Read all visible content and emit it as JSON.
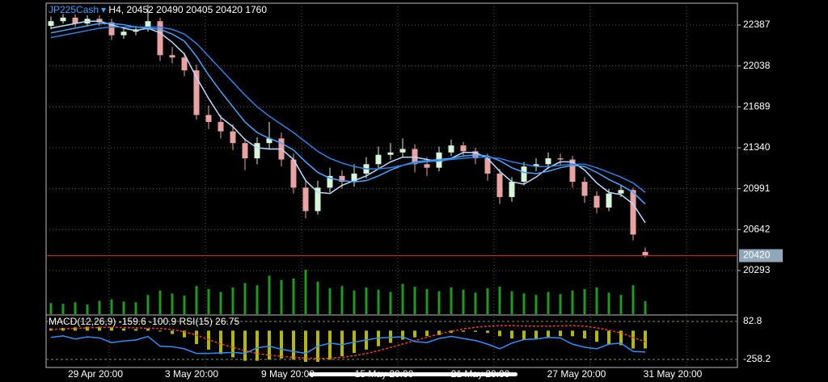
{
  "chart_data": {
    "type": "candlestick",
    "symbol": "JP225Cash",
    "timeframe": "H4,",
    "open": [
      22380,
      22420,
      22450,
      22400,
      22440,
      22410,
      22300,
      22330,
      22350,
      22420,
      22130,
      22110,
      22000,
      21620,
      21560,
      21480,
      21380,
      21250,
      21380,
      21420,
      21240,
      21000,
      20800,
      21000,
      21100,
      21050,
      21120,
      21200,
      21280,
      21300,
      21330,
      21200,
      21170,
      21300,
      21360,
      21310,
      21250,
      21120,
      20920,
      21050,
      21180,
      21200,
      21250,
      21240,
      21050,
      20930,
      20830,
      20950,
      20980,
      20452
    ],
    "high": [
      22460,
      22480,
      22480,
      22470,
      22470,
      22440,
      22370,
      22380,
      22560,
      22450,
      22200,
      22150,
      22050,
      21700,
      21620,
      21540,
      21420,
      21430,
      21560,
      21470,
      21290,
      21060,
      21060,
      21170,
      21150,
      21200,
      21260,
      21350,
      21380,
      21420,
      21370,
      21260,
      21350,
      21410,
      21390,
      21340,
      21290,
      21160,
      21090,
      21220,
      21250,
      21300,
      21290,
      21270,
      21090,
      20970,
      20990,
      21020,
      21000,
      20490
    ],
    "low": [
      22350,
      22400,
      22370,
      22380,
      22380,
      22260,
      22270,
      22300,
      22330,
      22080,
      22060,
      21950,
      21580,
      21500,
      21420,
      21320,
      21150,
      21200,
      21330,
      21180,
      20950,
      20740,
      20770,
      20960,
      20990,
      21010,
      21080,
      21160,
      21240,
      21260,
      21130,
      21100,
      21140,
      21270,
      21270,
      21200,
      21060,
      20860,
      20880,
      21020,
      21140,
      21160,
      21190,
      21000,
      20870,
      20780,
      20800,
      20920,
      20550,
      20405
    ],
    "close": [
      22420,
      22450,
      22400,
      22440,
      22410,
      22300,
      22330,
      22350,
      22420,
      22130,
      22110,
      22000,
      21620,
      21560,
      21480,
      21380,
      21250,
      21380,
      21420,
      21240,
      21000,
      20800,
      21000,
      21100,
      21050,
      21120,
      21200,
      21280,
      21300,
      21330,
      21200,
      21170,
      21300,
      21360,
      21310,
      21250,
      21120,
      20920,
      21050,
      21180,
      21200,
      21250,
      21240,
      21050,
      20930,
      20830,
      20950,
      20980,
      20600,
      20420
    ],
    "volume": [
      1500,
      1400,
      1600,
      1300,
      1800,
      2000,
      1700,
      1600,
      2600,
      3200,
      2800,
      2500,
      3800,
      3400,
      3000,
      3600,
      4200,
      3900,
      5200,
      4600,
      4800,
      6000,
      4400,
      3500,
      3800,
      3200,
      3600,
      3300,
      3000,
      4100,
      3700,
      3400,
      3100,
      3600,
      3300,
      2900,
      3500,
      3700,
      3100,
      2800,
      2600,
      3000,
      2700,
      3200,
      3400,
      3600,
      2900,
      2600,
      3900,
      1760
    ],
    "up_color": "#d8f5d8",
    "down_color": "#e9a3a3",
    "volume_color": "#1e9a1e",
    "moving_averages": [
      {
        "color": "#b8dcff",
        "values": [
          22360,
          22380,
          22400,
          22420,
          22420,
          22390,
          22360,
          22340,
          22360,
          22320,
          22240,
          22140,
          21940,
          21760,
          21600,
          21520,
          21410,
          21340,
          21330,
          21330,
          21240,
          21060,
          20960,
          20950,
          21020,
          21060,
          21100,
          21160,
          21220,
          21260,
          21260,
          21240,
          21220,
          21250,
          21300,
          21300,
          21250,
          21140,
          21050,
          21030,
          21090,
          21170,
          21220,
          21220,
          21150,
          21040,
          20960,
          20940,
          20860,
          20700
        ]
      },
      {
        "color": "#4aa3ff",
        "values": [
          22320,
          22340,
          22360,
          22380,
          22400,
          22400,
          22390,
          22370,
          22360,
          22350,
          22310,
          22250,
          22120,
          21960,
          21820,
          21690,
          21560,
          21470,
          21420,
          21380,
          21320,
          21220,
          21130,
          21080,
          21060,
          21050,
          21060,
          21100,
          21150,
          21190,
          21220,
          21230,
          21240,
          21250,
          21270,
          21280,
          21270,
          21230,
          21170,
          21130,
          21120,
          21140,
          21170,
          21190,
          21180,
          21130,
          21070,
          21020,
          20960,
          20860
        ]
      },
      {
        "color": "#2f7fe0",
        "values": [
          22280,
          22300,
          22320,
          22340,
          22360,
          22370,
          22370,
          22370,
          22370,
          22370,
          22350,
          22310,
          22230,
          22120,
          22010,
          21900,
          21790,
          21690,
          21610,
          21540,
          21470,
          21390,
          21310,
          21250,
          21210,
          21180,
          21160,
          21160,
          21170,
          21190,
          21210,
          21220,
          21230,
          21240,
          21250,
          21260,
          21260,
          21250,
          21220,
          21200,
          21180,
          21180,
          21190,
          21200,
          21200,
          21170,
          21130,
          21090,
          21040,
          20960
        ]
      }
    ],
    "ylim": [
      19914,
      22573
    ],
    "yticks": [
      22387,
      22038,
      21689,
      21340,
      20991,
      20642,
      20293
    ],
    "price_line_color": "#d02020",
    "grid": true,
    "x_labels": [
      "29 Apr 20:00",
      "3 May 20:00",
      "9 May 20:00",
      "15 May 20:00",
      "21 May 20:00",
      "27 May 20:00",
      "31 May 20:00"
    ],
    "macd": {
      "label": "MACD(12,26,9)",
      "color": "#b5b800",
      "signal_color": "#e04030",
      "values": [
        20,
        25,
        30,
        35,
        35,
        30,
        20,
        15,
        20,
        0,
        -30,
        -60,
        -120,
        -170,
        -210,
        -240,
        -270,
        -270,
        -260,
        -250,
        -260,
        -280,
        -280,
        -260,
        -230,
        -200,
        -170,
        -140,
        -110,
        -80,
        -60,
        -50,
        -40,
        -20,
        -10,
        -10,
        -20,
        -50,
        -70,
        -80,
        -70,
        -60,
        -50,
        -50,
        -70,
        -100,
        -120,
        -130,
        -160,
        -159.6
      ],
      "signal": [
        10,
        15,
        20,
        25,
        28,
        30,
        28,
        25,
        22,
        20,
        10,
        -10,
        -40,
        -80,
        -120,
        -150,
        -180,
        -205,
        -220,
        -230,
        -240,
        -245,
        -250,
        -248,
        -240,
        -225,
        -205,
        -180,
        -150,
        -120,
        -90,
        -60,
        -30,
        -5,
        15,
        30,
        40,
        45,
        45,
        42,
        40,
        40,
        42,
        45,
        40,
        25,
        5,
        -20,
        -60,
        -100.9
      ],
      "ylim": [
        -316,
        148
      ],
      "yticks": [
        82.8,
        -258.2
      ]
    },
    "rsi": {
      "label": "RSI(15)",
      "color": "#2e8fff",
      "values": [
        55,
        58,
        52,
        56,
        54,
        45,
        48,
        50,
        57,
        38,
        37,
        33,
        24,
        24,
        25,
        26,
        24,
        35,
        38,
        32,
        28,
        24,
        38,
        44,
        41,
        46,
        50,
        54,
        55,
        56,
        47,
        45,
        53,
        57,
        53,
        49,
        42,
        33,
        44,
        51,
        52,
        55,
        54,
        42,
        36,
        33,
        42,
        44,
        28,
        26.75
      ],
      "ylim": [
        0,
        100
      ]
    }
  }
}
